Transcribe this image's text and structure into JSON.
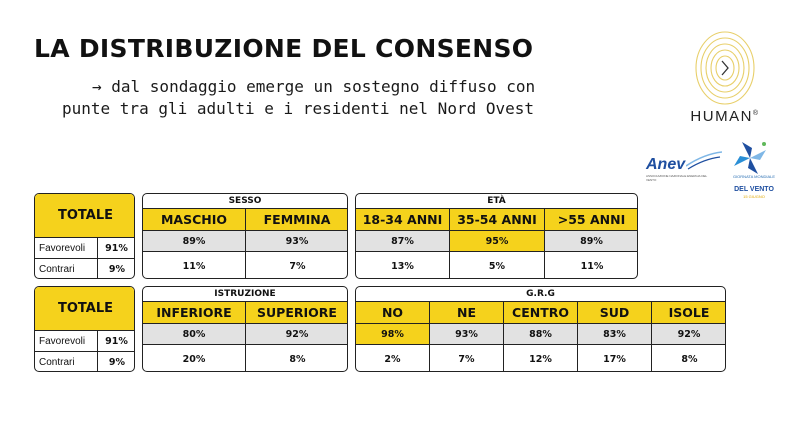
{
  "title": "LA DISTRIBUZIONE DEL CONSENSO",
  "subtitle": {
    "line1": "→ dal sondaggio emerge un sostegno diffuso con",
    "line2": "punte tra gli adulti e i residenti nel Nord Ovest"
  },
  "logos": {
    "human": "HUMAN",
    "human_mark": "®",
    "anev": "Anev",
    "anev_sub": "ASSOCIAZIONE NAZIONALE ENERGIA DEL VENTO",
    "vento_top": "GIORNATA MONDIALE",
    "vento_main": "DEL VENTO",
    "vento_date": "15 GIUGNO"
  },
  "table1": {
    "totale": {
      "title": "TOTALE",
      "rows": [
        {
          "label": "Favorevoli",
          "value": "91%"
        },
        {
          "label": "Contrari",
          "value": "9%"
        }
      ]
    },
    "sesso": {
      "title": "SESSO",
      "headers": [
        "MASCHIO",
        "FEMMINA"
      ],
      "favorevoli": [
        "89%",
        "93%"
      ],
      "contrari": [
        "11%",
        "7%"
      ]
    },
    "eta": {
      "title": "ETÀ",
      "headers": [
        "18-34 ANNI",
        "35-54 ANNI",
        ">55 ANNI"
      ],
      "favorevoli": [
        "87%",
        "95%",
        "89%"
      ],
      "contrari": [
        "13%",
        "5%",
        "11%"
      ]
    }
  },
  "table2": {
    "totale": {
      "title": "TOTALE",
      "rows": [
        {
          "label": "Favorevoli",
          "value": "91%"
        },
        {
          "label": "Contrari",
          "value": "9%"
        }
      ]
    },
    "istruzione": {
      "title": "ISTRUZIONE",
      "headers": [
        "INFERIORE",
        "SUPERIORE"
      ],
      "favorevoli": [
        "80%",
        "92%"
      ],
      "contrari": [
        "20%",
        "8%"
      ]
    },
    "grg": {
      "title": "G.R.G",
      "headers": [
        "NO",
        "NE",
        "CENTRO",
        "SUD",
        "ISOLE"
      ],
      "favorevoli": [
        "98%",
        "93%",
        "88%",
        "83%",
        "92%"
      ],
      "contrari": [
        "2%",
        "7%",
        "12%",
        "17%",
        "8%"
      ]
    }
  },
  "colors": {
    "highlight": "#f5d21c",
    "row_grey": "#e2e2e2",
    "anev_blue": "#1f4fa0",
    "human_gold": "#e8cf6a"
  }
}
